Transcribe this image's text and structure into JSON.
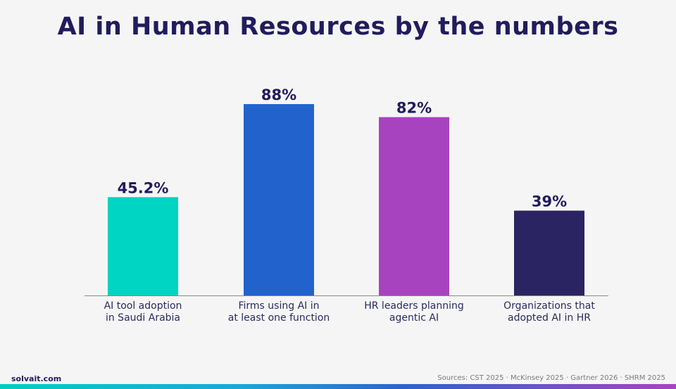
{
  "title": "AI in Human Resources by the numbers",
  "brand": "solvait.com",
  "sources": "Sources: CST 2025 · McKinsey 2025 · Gartner 2026 · SHRM 2025",
  "colors": {
    "background": "#f5f5f5",
    "title": "#211c5c",
    "bars": [
      "#00d4c2",
      "#2262cc",
      "#a843bf",
      "#2a2462"
    ],
    "footer_gradient": [
      "#00cfc0",
      "#2f63cc",
      "#a844bf"
    ]
  },
  "chart_data": {
    "type": "bar",
    "title": "AI in Human Resources by the numbers",
    "xlabel": "",
    "ylabel": "",
    "ylim": [
      0,
      100
    ],
    "grid": false,
    "categories": [
      [
        "AI tool adoption",
        "in Saudi Arabia"
      ],
      [
        "Firms using AI in",
        "at least one function"
      ],
      [
        "HR leaders planning",
        "agentic AI"
      ],
      [
        "Organizations that",
        "adopted AI in HR"
      ]
    ],
    "values": [
      45.2,
      88,
      82,
      39
    ],
    "value_labels": [
      "45.2%",
      "88%",
      "82%",
      "39%"
    ]
  }
}
